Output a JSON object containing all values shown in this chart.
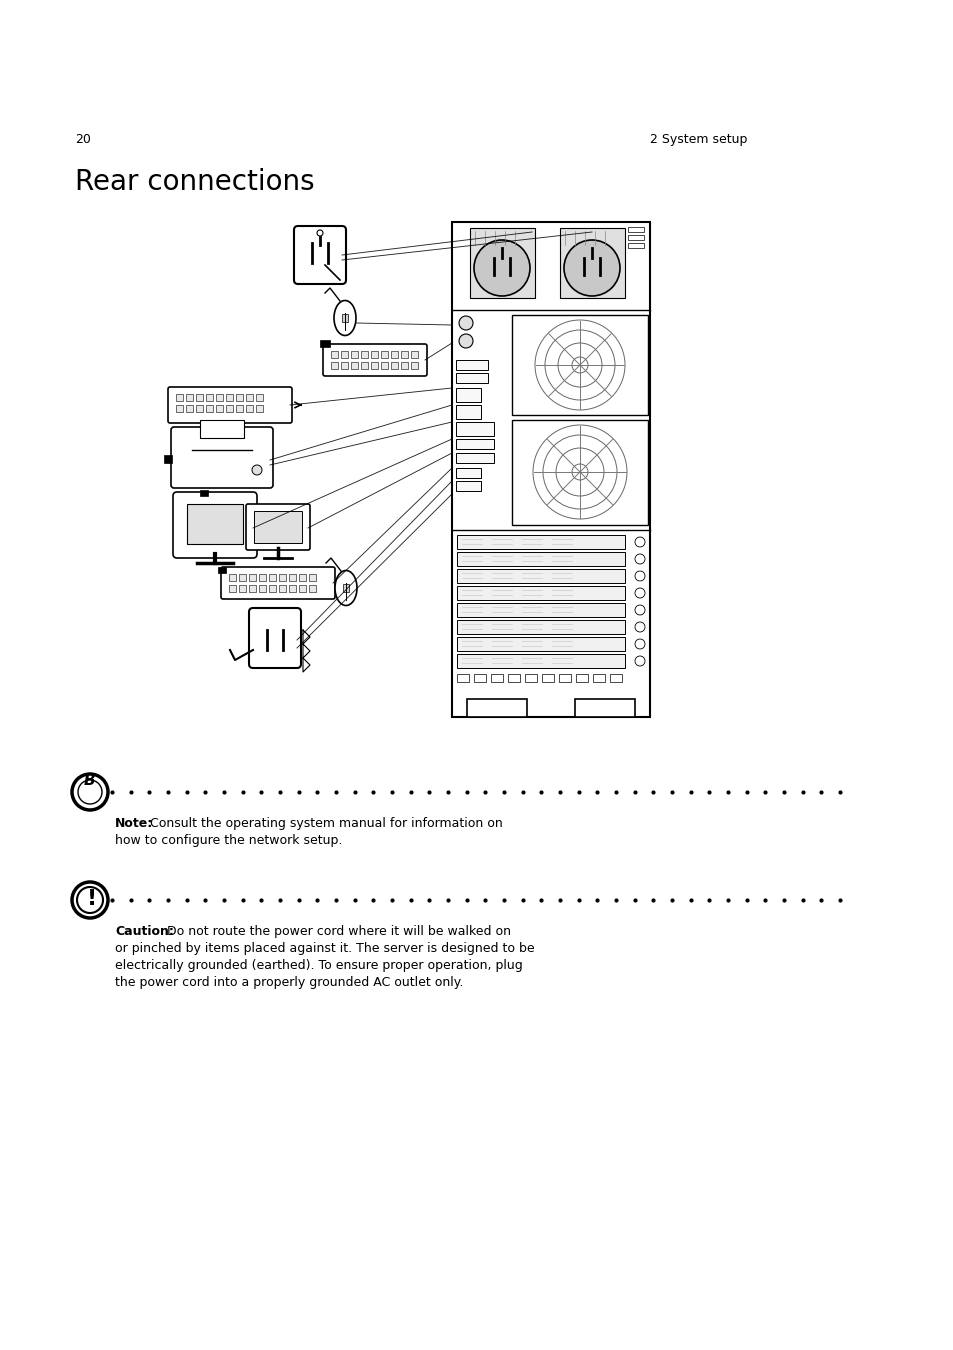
{
  "background_color": "#ffffff",
  "text_color": "#000000",
  "page_number": "20",
  "page_section": "2 System setup",
  "title": "Rear connections",
  "title_fontsize": 20,
  "body_fontsize": 9.0,
  "note_text_bold": "Note:",
  "note_line1": "Consult the operating system manual for information on",
  "note_line2": "how to configure the network setup.",
  "caution_text_bold": "Caution:",
  "caution_line1": " Do not route the power cord where it will be walked on",
  "caution_line2": "or pinched by items placed against it. The server is designed to be",
  "caution_line3": "electrically grounded (earthed). To ensure proper operation, plug",
  "caution_line4": "the power cord into a properly grounded AC outlet only."
}
